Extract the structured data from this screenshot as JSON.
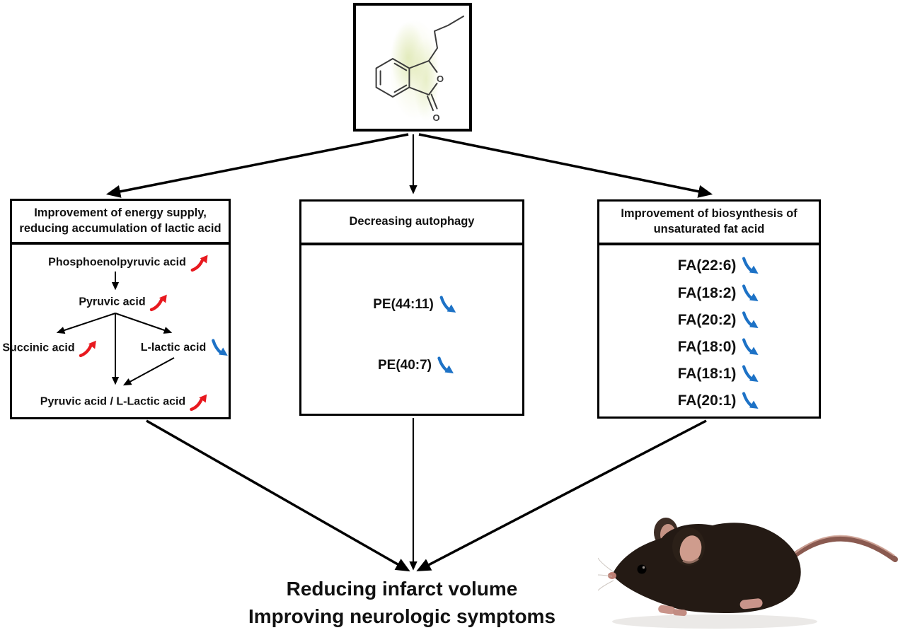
{
  "palette": {
    "increase": "#e8191f",
    "decrease": "#1d72c6",
    "line": "#000000"
  },
  "top_box": {
    "compound_icon": "butylphthalide-structure",
    "atom_labels": [
      "O",
      "O"
    ]
  },
  "left_box": {
    "header_lines": [
      "Improvement of energy supply,",
      "reducing accumulation of lactic acid"
    ],
    "nodes": [
      {
        "label": "Phosphoenolpyruvic acid",
        "trend": "up"
      },
      {
        "label": "Pyruvic acid",
        "trend": "up"
      },
      {
        "label": "Succinic acid",
        "trend": "up"
      },
      {
        "label": "L-lactic acid",
        "trend": "down"
      },
      {
        "label": "Pyruvic acid / L-Lactic acid",
        "trend": "up"
      }
    ]
  },
  "middle_box": {
    "header_lines": [
      "Decreasing autophagy"
    ],
    "items": [
      {
        "label": "PE(44:11)",
        "trend": "down"
      },
      {
        "label": "PE(40:7)",
        "trend": "down"
      }
    ]
  },
  "right_box": {
    "header_lines": [
      "Improvement of biosynthesis of",
      "unsaturated fat acid"
    ],
    "items": [
      {
        "label": "FA(22:6)",
        "trend": "down"
      },
      {
        "label": "FA(18:2)",
        "trend": "down"
      },
      {
        "label": "FA(20:2)",
        "trend": "down"
      },
      {
        "label": "FA(18:0)",
        "trend": "down"
      },
      {
        "label": "FA(18:1)",
        "trend": "down"
      },
      {
        "label": "FA(20:1)",
        "trend": "down"
      }
    ]
  },
  "conclusion": {
    "lines": [
      "Reducing infarct volume",
      "Improving neurologic symptoms"
    ]
  }
}
